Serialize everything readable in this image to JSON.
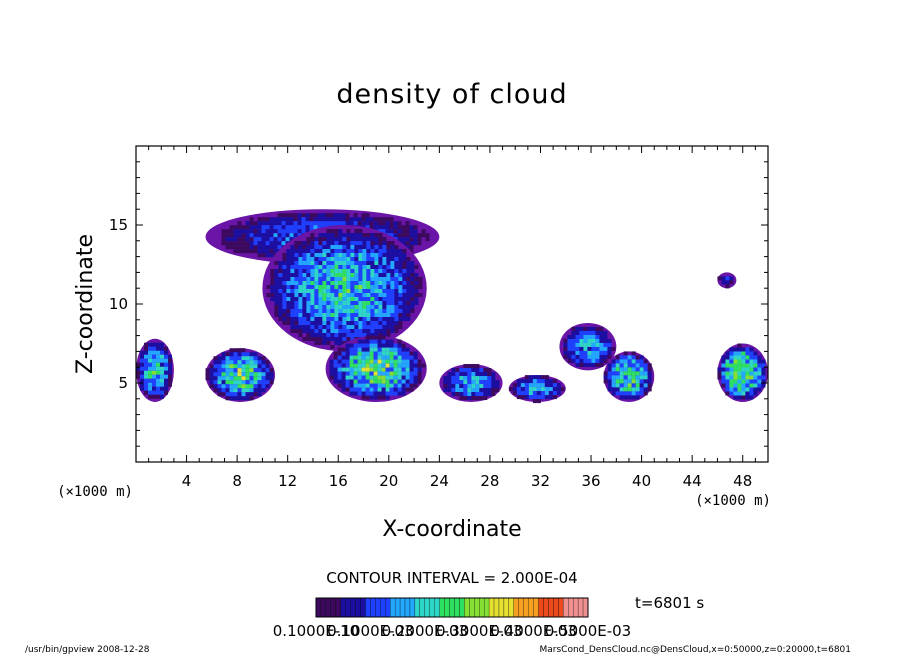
{
  "chart_data": {
    "type": "heatmap",
    "title": "density of cloud",
    "xlabel": "X-coordinate",
    "ylabel": "Z-coordinate",
    "x_unit": "(×1000 m)",
    "y_unit": "(×1000 m)",
    "xlim": [
      0,
      50
    ],
    "ylim": [
      0,
      20
    ],
    "x_ticks": [
      4,
      8,
      12,
      16,
      20,
      24,
      28,
      32,
      36,
      40,
      44,
      48
    ],
    "y_ticks": [
      5,
      10,
      15
    ],
    "contour_interval": "CONTOUR INTERVAL = 2.000E-04",
    "time_label": "t=6801 s",
    "colorbar": {
      "min": 0.0001,
      "max": 0.0005,
      "labels": [
        "0.1000E-10",
        "0.1000E-03",
        "0.2000E-03",
        "0.3000E-03",
        "0.4000E-03",
        "0.5000E-03"
      ],
      "colors": [
        "#3b0a5e",
        "#1a0fa0",
        "#1e40ff",
        "#22a8ff",
        "#2ed6c8",
        "#2ee060",
        "#86e034",
        "#e6e030",
        "#f5a020",
        "#ec4a1c",
        "#f09090"
      ]
    },
    "cloud_regions": [
      {
        "x": [
          0,
          3
        ],
        "z": [
          3.8,
          7.8
        ],
        "level": 0.00025
      },
      {
        "x": [
          5.5,
          11
        ],
        "z": [
          3.8,
          7.2
        ],
        "level": 0.0003
      },
      {
        "x": [
          5.5,
          24
        ],
        "z": [
          12.5,
          16
        ],
        "level": 0.00015
      },
      {
        "x": [
          10,
          23
        ],
        "z": [
          7,
          15
        ],
        "level": 0.00025
      },
      {
        "x": [
          15,
          23
        ],
        "z": [
          3.8,
          8
        ],
        "level": 0.0003
      },
      {
        "x": [
          24,
          29
        ],
        "z": [
          3.8,
          6.2
        ],
        "level": 0.0002
      },
      {
        "x": [
          29.5,
          34
        ],
        "z": [
          3.8,
          5.5
        ],
        "level": 0.0002
      },
      {
        "x": [
          33.5,
          38
        ],
        "z": [
          5.8,
          8.8
        ],
        "level": 0.0002
      },
      {
        "x": [
          37,
          41
        ],
        "z": [
          3.8,
          7
        ],
        "level": 0.0003
      },
      {
        "x": [
          46,
          50
        ],
        "z": [
          3.8,
          7.5
        ],
        "level": 0.00035
      },
      {
        "x": [
          46,
          47.5
        ],
        "z": [
          11,
          12
        ],
        "level": 0.0001
      }
    ]
  },
  "footer": {
    "left": "/usr/bin/gpview   2008-12-28",
    "right": "MarsCond_DensCloud.nc@DensCloud,x=0:50000,z=0:20000,t=6801"
  }
}
